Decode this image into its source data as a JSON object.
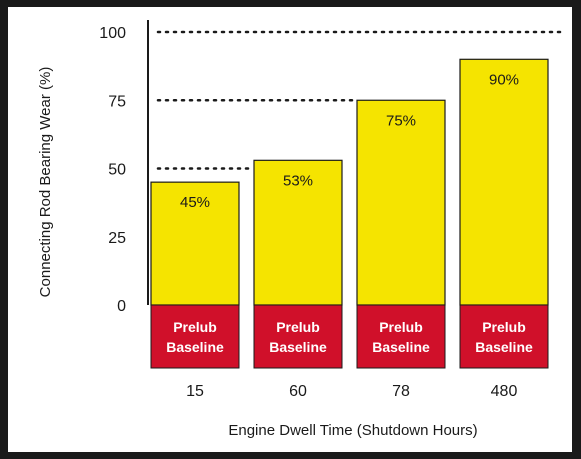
{
  "chart_data": {
    "type": "bar",
    "categories": [
      "15",
      "60",
      "78",
      "480"
    ],
    "values": [
      45,
      53,
      75,
      90
    ],
    "value_labels": [
      "45%",
      "53%",
      "75%",
      "90%"
    ],
    "baseline_label_line1": "Prelub",
    "baseline_label_line2": "Baseline",
    "xlabel": "Engine Dwell Time (Shutdown Hours)",
    "ylabel": "Connecting Rod Bearing Wear (%)",
    "yticks": [
      "100",
      "75",
      "50",
      "25",
      "0"
    ],
    "ytick_values": [
      100,
      75,
      50,
      25,
      0
    ],
    "ylim": [
      0,
      100
    ],
    "reference_lines": [
      50,
      75,
      100
    ],
    "grid": false,
    "colors": {
      "bar": "#f5e400",
      "baseline": "#d0102a",
      "baseline_text": "#ffffff",
      "text": "#1a1a1a",
      "frame": "#1a1a1a"
    }
  }
}
